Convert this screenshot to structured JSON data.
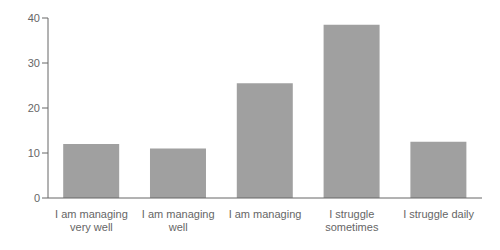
{
  "chart_data": {
    "type": "bar",
    "categories": [
      "I am managing\nvery well",
      "I am managing\nwell",
      "I am managing",
      "I struggle\nsometimes",
      "I struggle daily"
    ],
    "values": [
      12,
      11,
      25.5,
      38.5,
      12.5
    ],
    "color": "#a0a0a0",
    "ylim": [
      0,
      40
    ],
    "yticks": [
      0,
      10,
      20,
      30,
      40
    ],
    "grid": false
  }
}
